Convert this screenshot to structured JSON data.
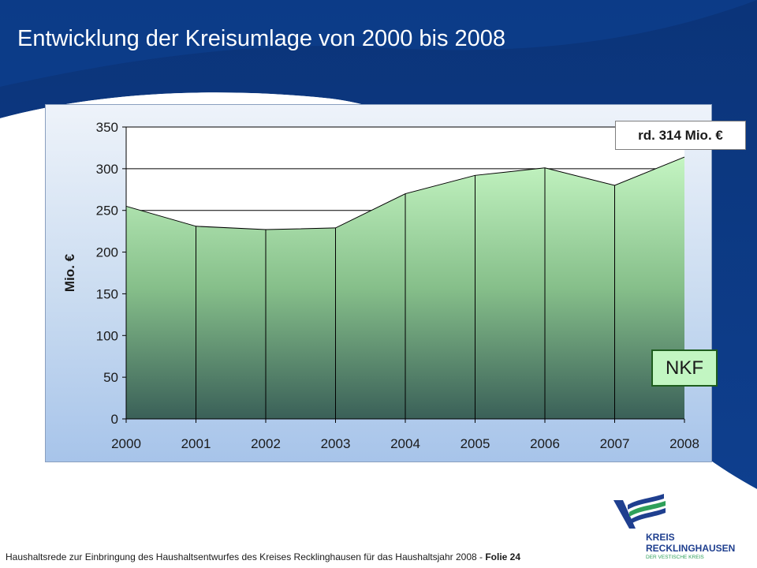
{
  "slide_title": "Entwicklung der Kreisumlage von 2000 bis 2008",
  "annotation": "rd. 314 Mio. €",
  "nkf_label": "NKF",
  "footer": {
    "text": "Haushaltsrede zur Einbringung des Haushaltsentwurfes des Kreises Recklinghausen für das Haushaltsjahr 2008 - ",
    "slide_ref": "Folie 24"
  },
  "logo": {
    "line1": "KREIS",
    "line2": "RECKLINGHAUSEN",
    "line3": "DER VESTISCHE KREIS"
  },
  "colors": {
    "header_blue": "#0d3a82",
    "area_top": "#c4f5c2",
    "area_bottom": "#3a6058"
  },
  "chart_data": {
    "type": "area",
    "categories": [
      "2000",
      "2001",
      "2002",
      "2003",
      "2004",
      "2005",
      "2006",
      "2007",
      "2008"
    ],
    "values": [
      255,
      231,
      227,
      229,
      270,
      292,
      301,
      280,
      314
    ],
    "ylabel": "Mio. €",
    "xlabel": "",
    "ylim": [
      0,
      350
    ],
    "yticks": [
      "0",
      "50",
      "100",
      "150",
      "200",
      "250",
      "300",
      "350"
    ],
    "grid": true,
    "legend": "none"
  }
}
